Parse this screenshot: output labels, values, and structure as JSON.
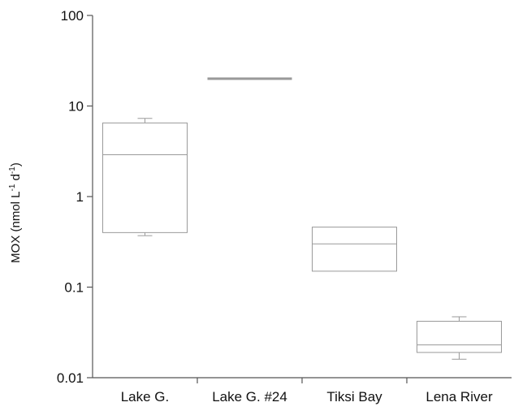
{
  "chart_data": {
    "type": "box",
    "yscale": "log",
    "ylim": [
      0.01,
      100
    ],
    "yticks": [
      0.01,
      0.1,
      1,
      10,
      100
    ],
    "ytick_labels": [
      "0.01",
      "0.1",
      "1",
      "10",
      "100"
    ],
    "ylabel": {
      "text": "MOX (nmol L",
      "sup1": "-1",
      "mid": " d",
      "sup2": "-1",
      "end": ")"
    },
    "xlabel": "",
    "title": "",
    "grid": false,
    "categories": [
      "Lake G.",
      "Lake G. #24",
      "Tiksi Bay",
      "Lena River"
    ],
    "boxes": [
      {
        "category": "Lake G.",
        "whisker_low": 0.37,
        "q1": 0.4,
        "median": 2.9,
        "q3": 6.5,
        "whisker_high": 7.3
      },
      {
        "category": "Lake G. #24",
        "whisker_low": 20,
        "q1": 20,
        "median": 20,
        "q3": 20,
        "whisker_high": 20
      },
      {
        "category": "Tiksi Bay",
        "whisker_low": 0.15,
        "q1": 0.15,
        "median": 0.3,
        "q3": 0.46,
        "whisker_high": 0.46
      },
      {
        "category": "Lena River",
        "whisker_low": 0.016,
        "q1": 0.019,
        "median": 0.023,
        "q3": 0.042,
        "whisker_high": 0.047
      }
    ],
    "colors": {
      "box_stroke": "#9a9a9a",
      "axis": "#555555",
      "single_line": "#999999"
    }
  }
}
